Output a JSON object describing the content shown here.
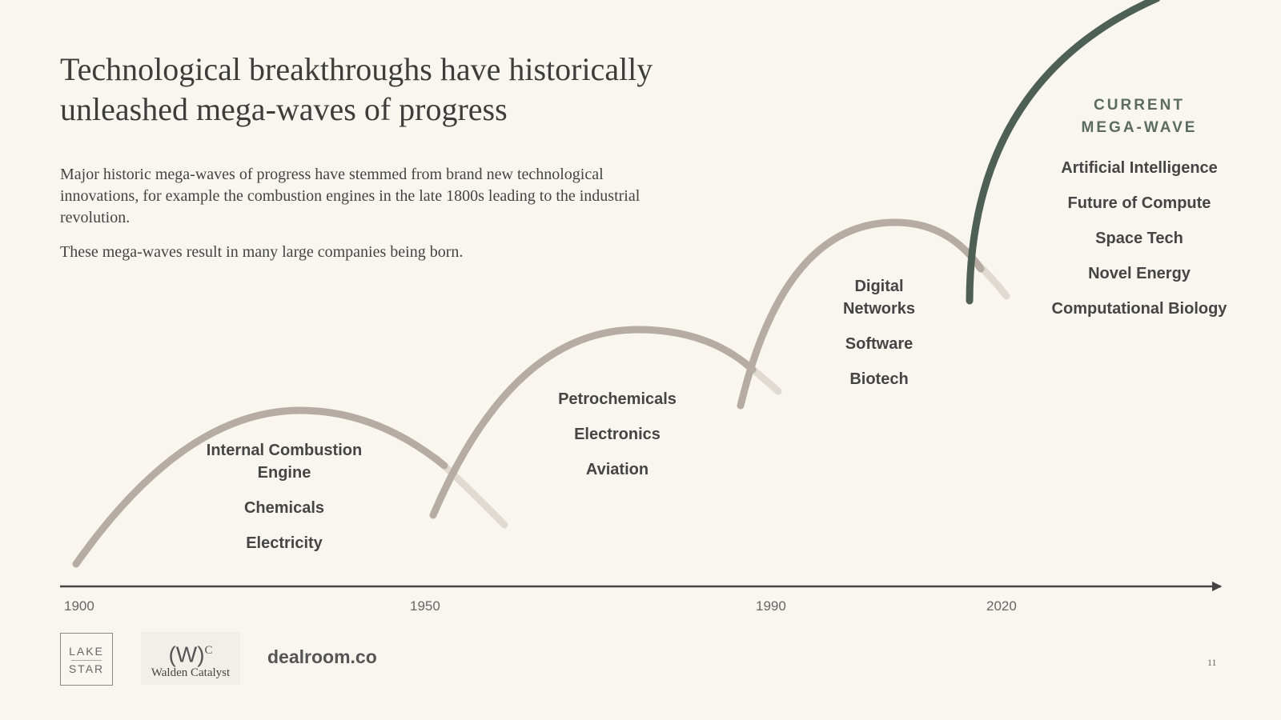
{
  "title": "Technological breakthroughs have historically unleashed mega-waves of progress",
  "paragraphs": [
    "Major historic mega-waves of progress have stemmed from brand new technological innovations, for example the combustion engines in the late 1800s leading to the industrial revolution.",
    "These mega-waves result in many large companies being born."
  ],
  "waves": [
    {
      "items": [
        "Internal Combustion Engine",
        "Chemicals",
        "Electricity"
      ]
    },
    {
      "items": [
        "Petrochemicals",
        "Electronics",
        "Aviation"
      ]
    },
    {
      "items": [
        "Digital Networks",
        "Software",
        "Biotech"
      ]
    },
    {
      "label": "CURRENT MEGA-WAVE",
      "items": [
        "Artificial Intelligence",
        "Future of Compute",
        "Space Tech",
        "Novel Energy",
        "Computational Biology"
      ]
    }
  ],
  "years": [
    "1900",
    "1950",
    "1990",
    "2020"
  ],
  "logos": {
    "lake_top": "LAKE",
    "lake_bottom": "STAR",
    "walden_mark": "(W)",
    "walden_sup": "C",
    "walden_name": "Walden Catalyst",
    "dealroom": "dealroom.co"
  },
  "page_number": "11",
  "colors": {
    "background": "#f8f6ef",
    "past_wave": "#b6aca3",
    "past_wave_fade": "#e0dbd2",
    "current_wave": "#4e5f56",
    "axis": "#444444"
  }
}
